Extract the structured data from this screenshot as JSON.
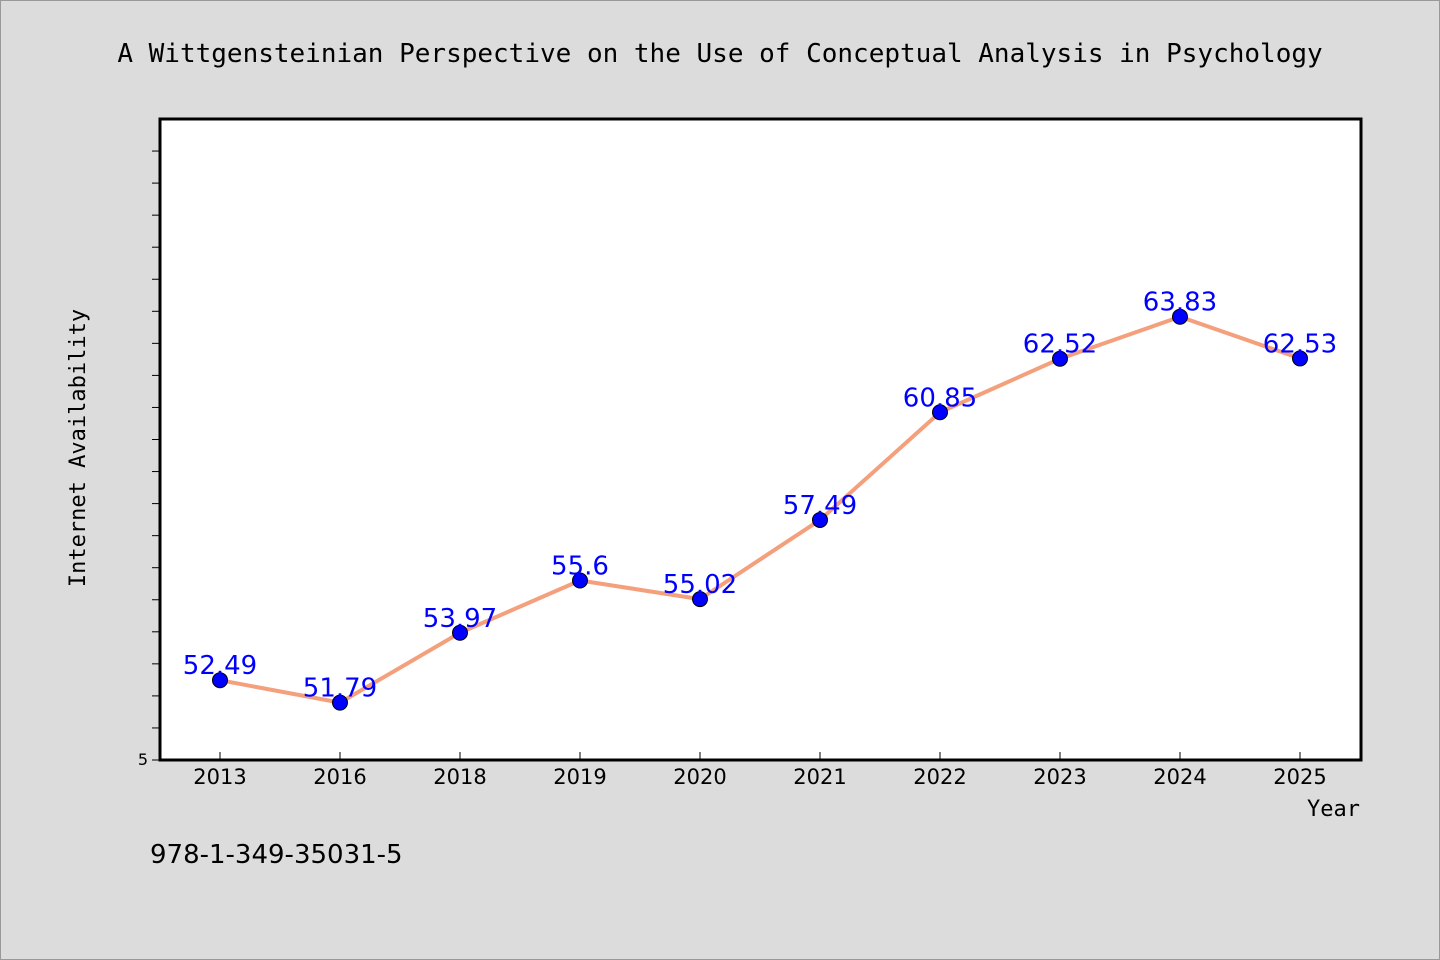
{
  "chart_data": {
    "type": "line",
    "title": "A Wittgensteinian Perspective on the Use of Conceptual Analysis in Psychology",
    "xlabel": "Year",
    "ylabel": "Internet Availability",
    "categories": [
      "2013",
      "2016",
      "2018",
      "2019",
      "2020",
      "2021",
      "2022",
      "2023",
      "2024",
      "2025"
    ],
    "series": [
      {
        "values": [
          52.49,
          51.79,
          53.97,
          55.6,
          55.02,
          57.49,
          60.85,
          62.52,
          63.83,
          62.53
        ],
        "labels": [
          "52.49",
          "51.79",
          "53.97",
          "55.6",
          "55.02",
          "57.49",
          "60.85",
          "62.52",
          "63.83",
          "62.53"
        ]
      }
    ],
    "ylim": [
      50,
      70
    ],
    "y_tick_labels": [
      "5"
    ],
    "grid": false,
    "line_color": "#f4a07c",
    "marker_color": "#0000ff",
    "label_color": "#0000ff"
  },
  "footer": {
    "isbn": "978-1-349-35031-5"
  }
}
